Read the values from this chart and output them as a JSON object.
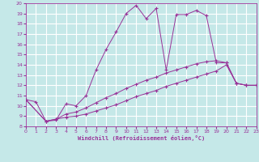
{
  "xlabel": "Windchill (Refroidissement éolien,°C)",
  "bg_color": "#c5e8e8",
  "line_color": "#993399",
  "grid_color": "#ffffff",
  "xlim": [
    0,
    23
  ],
  "ylim": [
    8,
    20
  ],
  "yticks": [
    8,
    9,
    10,
    11,
    12,
    13,
    14,
    15,
    16,
    17,
    18,
    19,
    20
  ],
  "xticks": [
    0,
    1,
    2,
    3,
    4,
    5,
    6,
    7,
    8,
    9,
    10,
    11,
    12,
    13,
    14,
    15,
    16,
    17,
    18,
    19,
    20,
    21,
    22,
    23
  ],
  "series1_x": [
    0,
    1,
    2,
    3,
    4,
    5,
    6,
    7,
    8,
    9,
    10,
    11,
    12,
    13,
    14,
    15,
    16,
    17,
    18,
    19,
    20,
    21,
    22,
    23
  ],
  "series1_y": [
    10.6,
    10.4,
    8.5,
    8.6,
    10.2,
    10.0,
    11.0,
    13.5,
    15.5,
    17.2,
    19.0,
    19.8,
    18.5,
    19.5,
    13.5,
    18.9,
    18.9,
    19.3,
    18.8,
    14.2,
    14.2,
    12.2,
    12.0,
    12.0
  ],
  "series2_x": [
    0,
    2,
    3,
    4,
    5,
    6,
    7,
    8,
    9,
    10,
    11,
    12,
    13,
    14,
    15,
    16,
    17,
    18,
    19,
    20,
    21,
    22,
    23
  ],
  "series2_y": [
    10.6,
    8.5,
    8.7,
    8.9,
    9.0,
    9.2,
    9.5,
    9.8,
    10.1,
    10.5,
    10.9,
    11.2,
    11.5,
    11.9,
    12.2,
    12.5,
    12.8,
    13.1,
    13.4,
    14.0,
    12.2,
    12.0,
    12.0
  ],
  "series3_x": [
    0,
    2,
    3,
    4,
    5,
    6,
    7,
    8,
    9,
    10,
    11,
    12,
    13,
    14,
    15,
    16,
    17,
    18,
    19,
    20,
    21,
    22,
    23
  ],
  "series3_y": [
    10.6,
    8.5,
    8.7,
    9.2,
    9.4,
    9.8,
    10.3,
    10.8,
    11.2,
    11.7,
    12.1,
    12.5,
    12.8,
    13.2,
    13.5,
    13.8,
    14.1,
    14.3,
    14.4,
    14.2,
    12.2,
    12.0,
    12.0
  ]
}
